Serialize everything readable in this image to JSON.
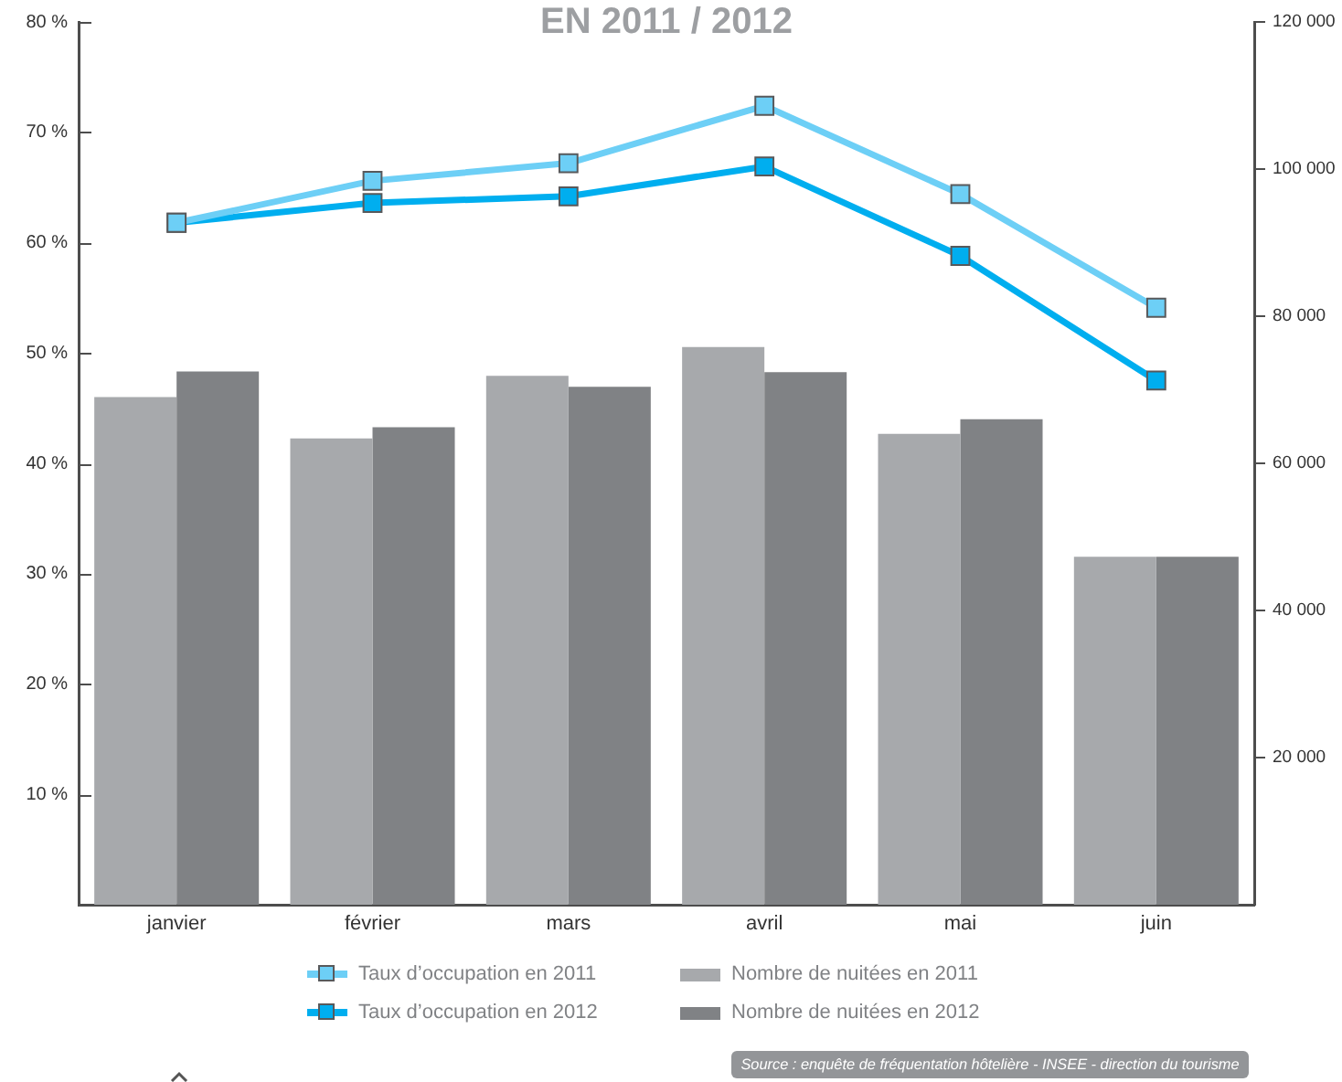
{
  "chart_data": {
    "type": "bar",
    "title": "EN 2011 / 2012",
    "categories": [
      "janvier",
      "février",
      "mars",
      "avril",
      "mai",
      "juin"
    ],
    "series": [
      {
        "name": "Taux d’occupation en 2011",
        "type": "line",
        "color": "#6dcff6",
        "values": [
          61.8,
          65.6,
          67.2,
          72.4,
          64.4,
          54.1
        ]
      },
      {
        "name": "Taux d’occupation en 2012",
        "type": "line",
        "color": "#00aeef",
        "values": [
          61.8,
          63.6,
          64.2,
          66.9,
          58.8,
          47.5
        ]
      },
      {
        "name": "Nombre de nuitées en 2011",
        "axis": "y2",
        "color": "#a7a9ac",
        "values": [
          69000,
          63400,
          71900,
          75800,
          64000,
          47300
        ]
      },
      {
        "name": "Nombre de nuitées en 2012",
        "axis": "y2",
        "color": "#808285",
        "values": [
          72500,
          64900,
          70400,
          72400,
          66000,
          47300
        ]
      }
    ],
    "ylim": [
      0,
      80
    ],
    "yticks": [
      {
        "value": 10,
        "label": "10 %"
      },
      {
        "value": 20,
        "label": "20 %"
      },
      {
        "value": 30,
        "label": "30 %"
      },
      {
        "value": 40,
        "label": "40 %"
      },
      {
        "value": 50,
        "label": "50 %"
      },
      {
        "value": 60,
        "label": "60 %"
      },
      {
        "value": 70,
        "label": "70 %"
      },
      {
        "value": 80,
        "label": "80 %"
      }
    ],
    "y2lim": [
      0,
      120000
    ],
    "y2ticks": [
      {
        "value": 20000,
        "label": "20 000"
      },
      {
        "value": 40000,
        "label": "40 000"
      },
      {
        "value": 60000,
        "label": "60 000"
      },
      {
        "value": 80000,
        "label": "80 000"
      },
      {
        "value": 100000,
        "label": "100 000"
      },
      {
        "value": 120000,
        "label": "120 000"
      }
    ],
    "marker": "square",
    "legend": "bottom",
    "annotations": [
      "Source : enquête de fréquentation hôtelière - INSEE - direction du tourisme"
    ]
  }
}
